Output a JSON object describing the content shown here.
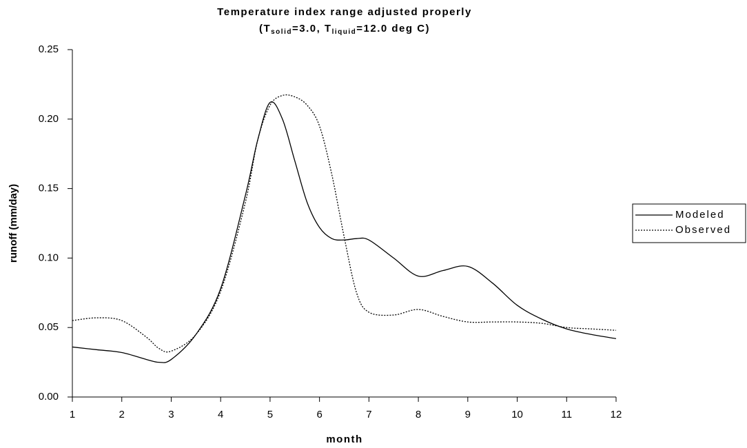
{
  "chart_data": {
    "type": "line",
    "title": "Temperature index range adjusted properly",
    "subtitle_parts": [
      "(T",
      "solid",
      "=3.0, T",
      "liquid",
      "=12.0 deg C)"
    ],
    "x_label": "month",
    "y_label": "runoff (mm/day)",
    "x": [
      1,
      1.5,
      2,
      2.5,
      2.75,
      3,
      3.5,
      4,
      4.5,
      4.75,
      5,
      5.25,
      5.5,
      5.75,
      6,
      6.25,
      6.5,
      6.75,
      7,
      7.5,
      8,
      8.5,
      9,
      9.5,
      10,
      10.5,
      11,
      11.5,
      12
    ],
    "series": [
      {
        "name": "Modeled",
        "color": "#000000",
        "dash": "solid",
        "values": [
          0.036,
          0.034,
          0.032,
          0.027,
          0.025,
          0.027,
          0.045,
          0.078,
          0.145,
          0.185,
          0.212,
          0.2,
          0.17,
          0.14,
          0.122,
          0.114,
          0.113,
          0.114,
          0.113,
          0.1,
          0.087,
          0.091,
          0.094,
          0.082,
          0.066,
          0.056,
          0.049,
          0.045,
          0.042
        ]
      },
      {
        "name": "Observed",
        "color": "#000000",
        "dash": "dotted",
        "values": [
          0.055,
          0.057,
          0.055,
          0.043,
          0.035,
          0.033,
          0.045,
          0.076,
          0.14,
          0.185,
          0.21,
          0.217,
          0.216,
          0.21,
          0.195,
          0.16,
          0.115,
          0.075,
          0.061,
          0.059,
          0.063,
          0.058,
          0.054,
          0.054,
          0.054,
          0.053,
          0.05,
          0.049,
          0.048
        ]
      }
    ],
    "xlim": [
      1,
      12
    ],
    "xticks": [
      1,
      2,
      3,
      4,
      5,
      6,
      7,
      8,
      9,
      10,
      11,
      12
    ],
    "ylim": [
      0,
      0.25
    ],
    "yticks": [
      {
        "value": 0,
        "label": "0.00"
      },
      {
        "value": 0.05,
        "label": "0.05"
      },
      {
        "value": 0.1,
        "label": "0.10"
      },
      {
        "value": 0.15,
        "label": "0.15"
      },
      {
        "value": 0.2,
        "label": "0.20"
      },
      {
        "value": 0.25,
        "label": "0.25"
      }
    ],
    "grid": false,
    "legend": "right"
  }
}
